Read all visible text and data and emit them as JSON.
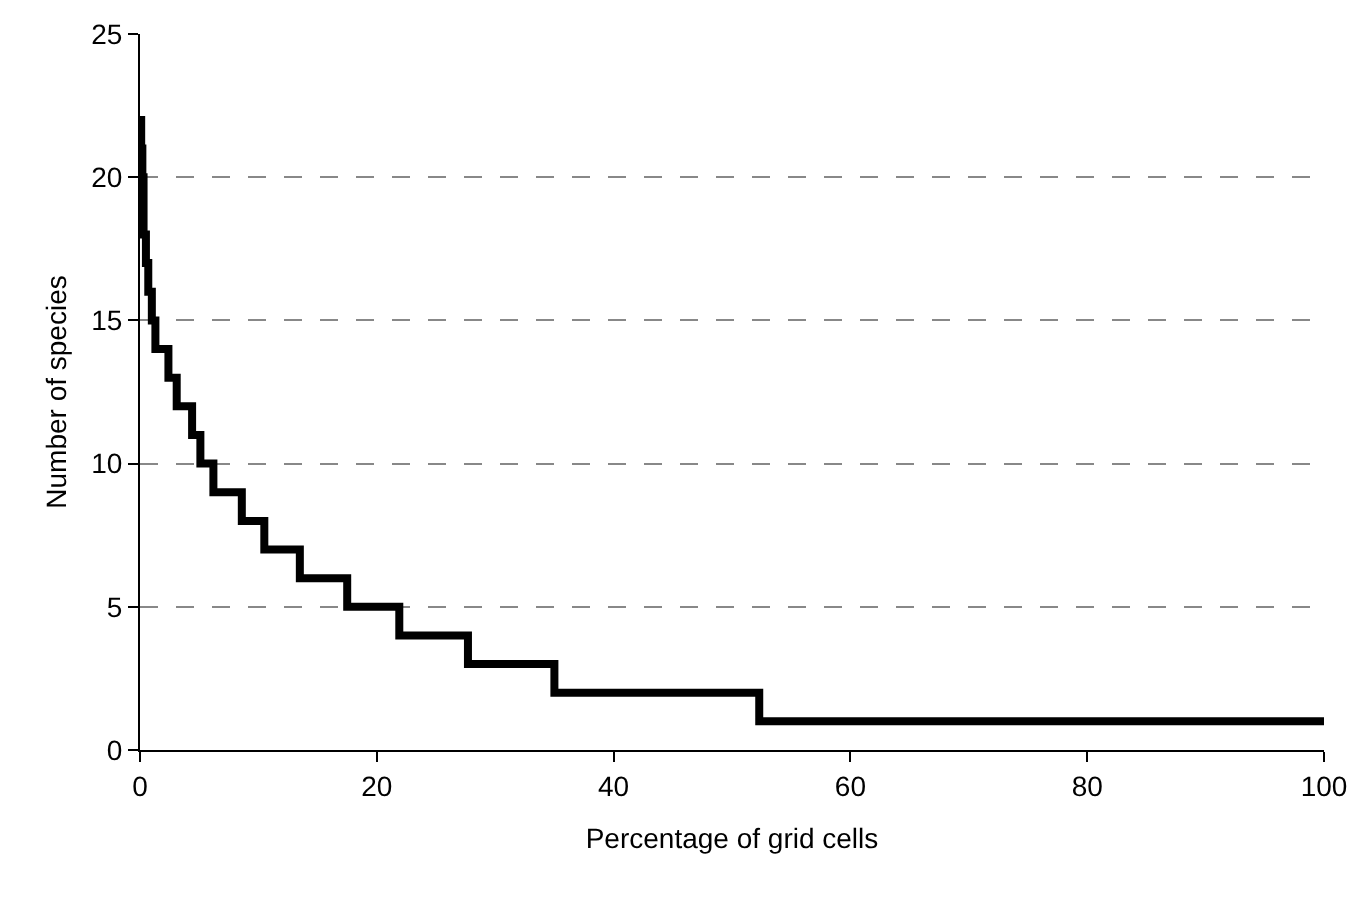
{
  "chart_data": {
    "type": "step",
    "xlabel": "Percentage of grid cells",
    "ylabel": "Number of species",
    "x": [
      0,
      0.1,
      0.2,
      0.3,
      0.5,
      0.7,
      1.0,
      1.3,
      2.4,
      3.1,
      4.4,
      5.1,
      6.2,
      8.6,
      10.5,
      13.5,
      17.5,
      21.9,
      27.7,
      35.0,
      52.3,
      100
    ],
    "series": [
      {
        "color": "#000000",
        "values": [
          22,
          21,
          20,
          18,
          17,
          16,
          15,
          14,
          13,
          12,
          11,
          10,
          9,
          8,
          7,
          6,
          5,
          4,
          3,
          2,
          1,
          1
        ]
      }
    ],
    "xlim": [
      0,
      100
    ],
    "xticks": [
      0,
      20,
      40,
      60,
      80,
      100
    ],
    "ylim": [
      0,
      25
    ],
    "yticks": [
      0,
      5,
      10,
      15,
      20,
      25
    ],
    "grid": "y",
    "marker": "none",
    "line_style": "solid"
  }
}
